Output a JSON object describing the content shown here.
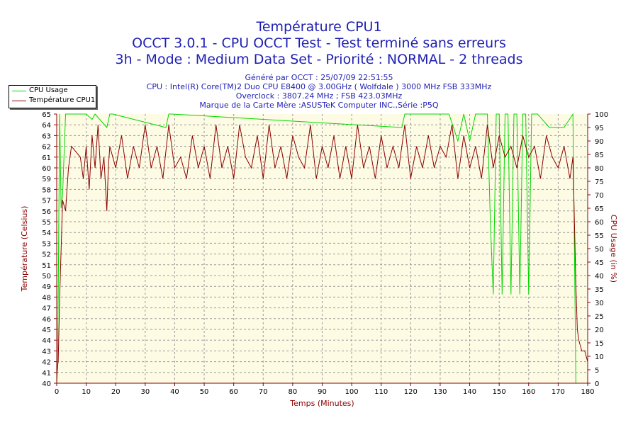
{
  "titles": {
    "line1": "Température CPU1",
    "line2": "OCCT 3.0.1 - CPU OCCT Test - Test terminé sans erreurs",
    "line3": "3h - Mode : Medium Data Set - Priorité : NORMAL - 2 threads"
  },
  "info": {
    "generated": "Généré par OCCT : 25/07/09 22:51:55",
    "cpu": "CPU : Intel(R) Core(TM)2 Duo CPU E8400 @ 3.00GHz ( Wolfdale ) 3000 MHz FSB 333MHz",
    "overclock": "Overclock : 3807.24 MHz ; FSB 423.03MHz",
    "motherboard": "Marque de la Carte Mère :ASUSTeK Computer INC.,Série :P5Q"
  },
  "colors": {
    "background": "#fefbe4",
    "usage": "#00d800",
    "temperature": "#8b0000",
    "left_axis": "#8b0000",
    "bottom_axis": "#8b0000",
    "grid": "#9a9a9a"
  },
  "chart_data": {
    "type": "line",
    "title": "Température CPU1",
    "xlabel": "Temps (Minutes)",
    "ylabel": "Température (Celsius)",
    "y2label": "CPU Usage (in %)",
    "xlim": [
      0,
      180
    ],
    "ylim": [
      40,
      65
    ],
    "y2lim": [
      0,
      100
    ],
    "x_ticks": [
      0,
      10,
      20,
      30,
      40,
      50,
      60,
      70,
      80,
      90,
      100,
      110,
      120,
      130,
      140,
      150,
      160,
      170,
      180
    ],
    "y_ticks": [
      40,
      41,
      42,
      43,
      44,
      45,
      46,
      47,
      48,
      49,
      50,
      51,
      52,
      53,
      54,
      55,
      56,
      57,
      58,
      59,
      60,
      61,
      62,
      63,
      64,
      65
    ],
    "y2_ticks": [
      0,
      5,
      10,
      15,
      20,
      25,
      30,
      35,
      40,
      45,
      50,
      55,
      60,
      65,
      70,
      75,
      80,
      85,
      90,
      95,
      100
    ],
    "legend_position": "top-left",
    "series": [
      {
        "name": "CPU Usage",
        "axis": "right",
        "x": [
          0,
          0.3,
          0.6,
          1,
          1.5,
          2,
          3,
          10,
          12,
          13,
          17,
          18,
          19,
          37,
          38,
          39,
          117,
          118,
          119,
          133,
          136,
          138,
          140,
          142,
          146,
          147,
          148,
          149,
          150,
          151,
          152,
          153,
          154,
          155,
          156,
          157,
          158,
          159,
          160,
          161,
          163,
          167,
          172,
          175,
          176,
          176.5,
          177,
          178,
          180
        ],
        "values": [
          0,
          5,
          45,
          100,
          65,
          70,
          100,
          100,
          98,
          100,
          95,
          100,
          100,
          95,
          100,
          100,
          95,
          100,
          100,
          100,
          90,
          100,
          90,
          100,
          100,
          60,
          33,
          100,
          100,
          33,
          100,
          100,
          33,
          100,
          100,
          33,
          100,
          100,
          33,
          100,
          100,
          95,
          95,
          100,
          0,
          0,
          0,
          0,
          0
        ]
      },
      {
        "name": "Température CPU1",
        "axis": "left",
        "x": [
          0,
          0.5,
          1,
          2,
          3,
          4,
          5,
          8,
          9,
          10,
          11,
          12,
          13,
          14,
          15,
          16,
          17,
          17.5,
          18,
          19,
          20,
          22,
          24,
          26,
          28,
          30,
          32,
          34,
          36,
          38,
          40,
          42,
          44,
          46,
          48,
          50,
          52,
          54,
          56,
          58,
          60,
          62,
          64,
          66,
          68,
          70,
          72,
          74,
          76,
          78,
          80,
          82,
          84,
          86,
          88,
          90,
          92,
          94,
          96,
          98,
          100,
          102,
          104,
          106,
          108,
          110,
          112,
          114,
          116,
          118,
          120,
          122,
          124,
          126,
          128,
          130,
          132,
          134,
          136,
          138,
          140,
          142,
          144,
          146,
          148,
          150,
          152,
          154,
          156,
          158,
          160,
          162,
          164,
          166,
          168,
          170,
          172,
          174,
          175,
          175.5,
          176,
          176.5,
          177,
          178,
          179,
          180
        ],
        "values": [
          41,
          42,
          48,
          57,
          56,
          60,
          62,
          61,
          59,
          62,
          58,
          63,
          60,
          64,
          59,
          61,
          56,
          60,
          62,
          61,
          60,
          63,
          59,
          62,
          60,
          64,
          60,
          62,
          59,
          64,
          60,
          61,
          59,
          63,
          60,
          62,
          59,
          64,
          60,
          62,
          59,
          64,
          61,
          60,
          63,
          59,
          64,
          60,
          62,
          59,
          63,
          61,
          60,
          64,
          59,
          62,
          60,
          63,
          59,
          62,
          59,
          64,
          60,
          62,
          59,
          63,
          60,
          62,
          60,
          64,
          59,
          62,
          60,
          63,
          60,
          62,
          61,
          64,
          59,
          63,
          60,
          62,
          59,
          64,
          60,
          63,
          61,
          62,
          60,
          63,
          61,
          62,
          59,
          63,
          61,
          60,
          62,
          59,
          61,
          55,
          49,
          45,
          44,
          43,
          43,
          42
        ]
      }
    ]
  }
}
